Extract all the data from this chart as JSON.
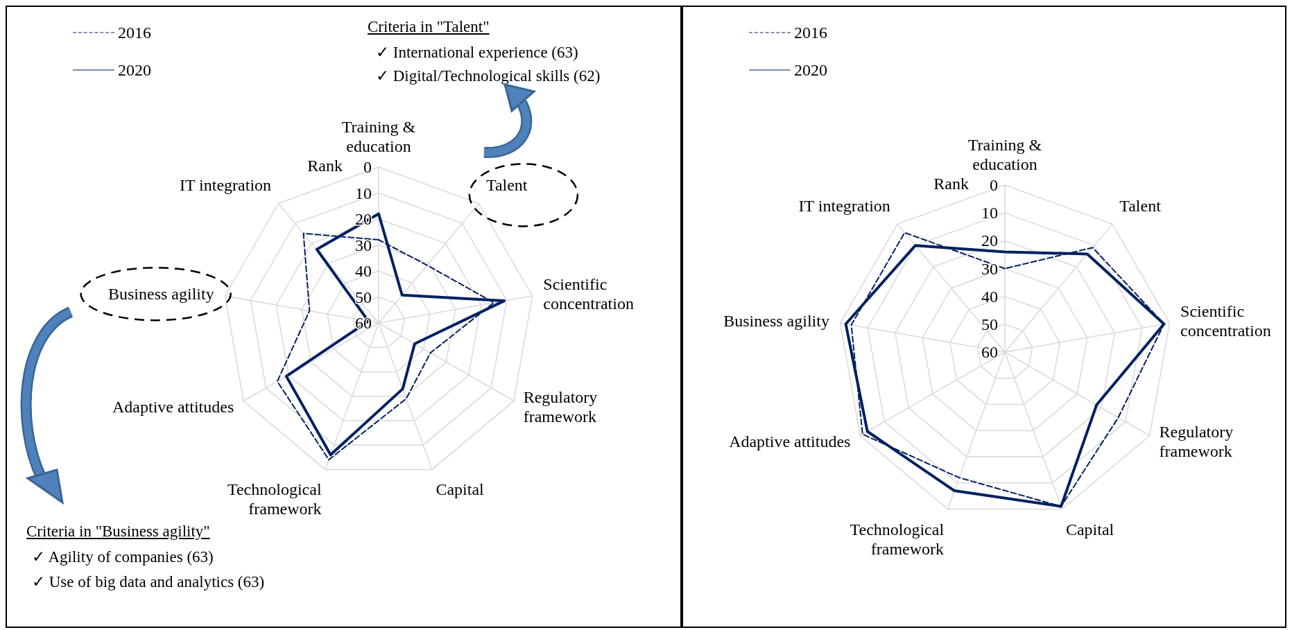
{
  "chart_data": [
    {
      "type": "radar",
      "categories": [
        "Training &\neducation",
        "Talent",
        "Scientific\nconcentration",
        "Regulatory\nframework",
        "Capital",
        "Technological\nframework",
        "Adaptive attitudes",
        "Business agility",
        "IT integration"
      ],
      "ylabel": "Rank",
      "ylim": [
        60,
        0
      ],
      "yticks": [
        0,
        10,
        20,
        30,
        40,
        50,
        60
      ],
      "grid": true,
      "legend": "top left",
      "marker": "none",
      "series": [
        {
          "name": "2016",
          "color": "#002060",
          "line_style": "dashed",
          "values": [
            28,
            31,
            15,
            37,
            29,
            4,
            15,
            33,
            15
          ]
        },
        {
          "name": "2020",
          "color": "#002060",
          "line_style": "solid",
          "values": [
            18,
            46,
            11,
            44,
            33,
            6,
            19,
            56,
            23
          ]
        }
      ],
      "annotations": [
        "Criteria in \"Talent\"",
        "✓ International experience (63)",
        "✓ Digital/Technological skills (62)",
        "Criteria in \"Business agility\"",
        "✓ Agility of companies (63)",
        "✓ Use of big data and analytics (63)"
      ]
    },
    {
      "type": "radar",
      "categories": [
        "Training &\neducation",
        "Talent",
        "Scientific\nconcentration",
        "Regulatory\nframework",
        "Capital",
        "Technological\nframework",
        "Adaptive attitudes",
        "Business agility",
        "IT integration"
      ],
      "ylabel": "Rank",
      "ylim": [
        60,
        0
      ],
      "yticks": [
        0,
        10,
        20,
        30,
        40,
        50,
        60
      ],
      "grid": true,
      "legend": "top left",
      "marker": "none",
      "series": [
        {
          "name": "2016",
          "color": "#002060",
          "line_style": "dashed",
          "values": [
            30,
            11,
            2,
            13,
            1,
            12,
            1,
            4,
            4
          ]
        },
        {
          "name": "2020",
          "color": "#002060",
          "line_style": "solid",
          "values": [
            24,
            14,
            2,
            22,
            1,
            7,
            3,
            2,
            10
          ]
        }
      ]
    }
  ]
}
